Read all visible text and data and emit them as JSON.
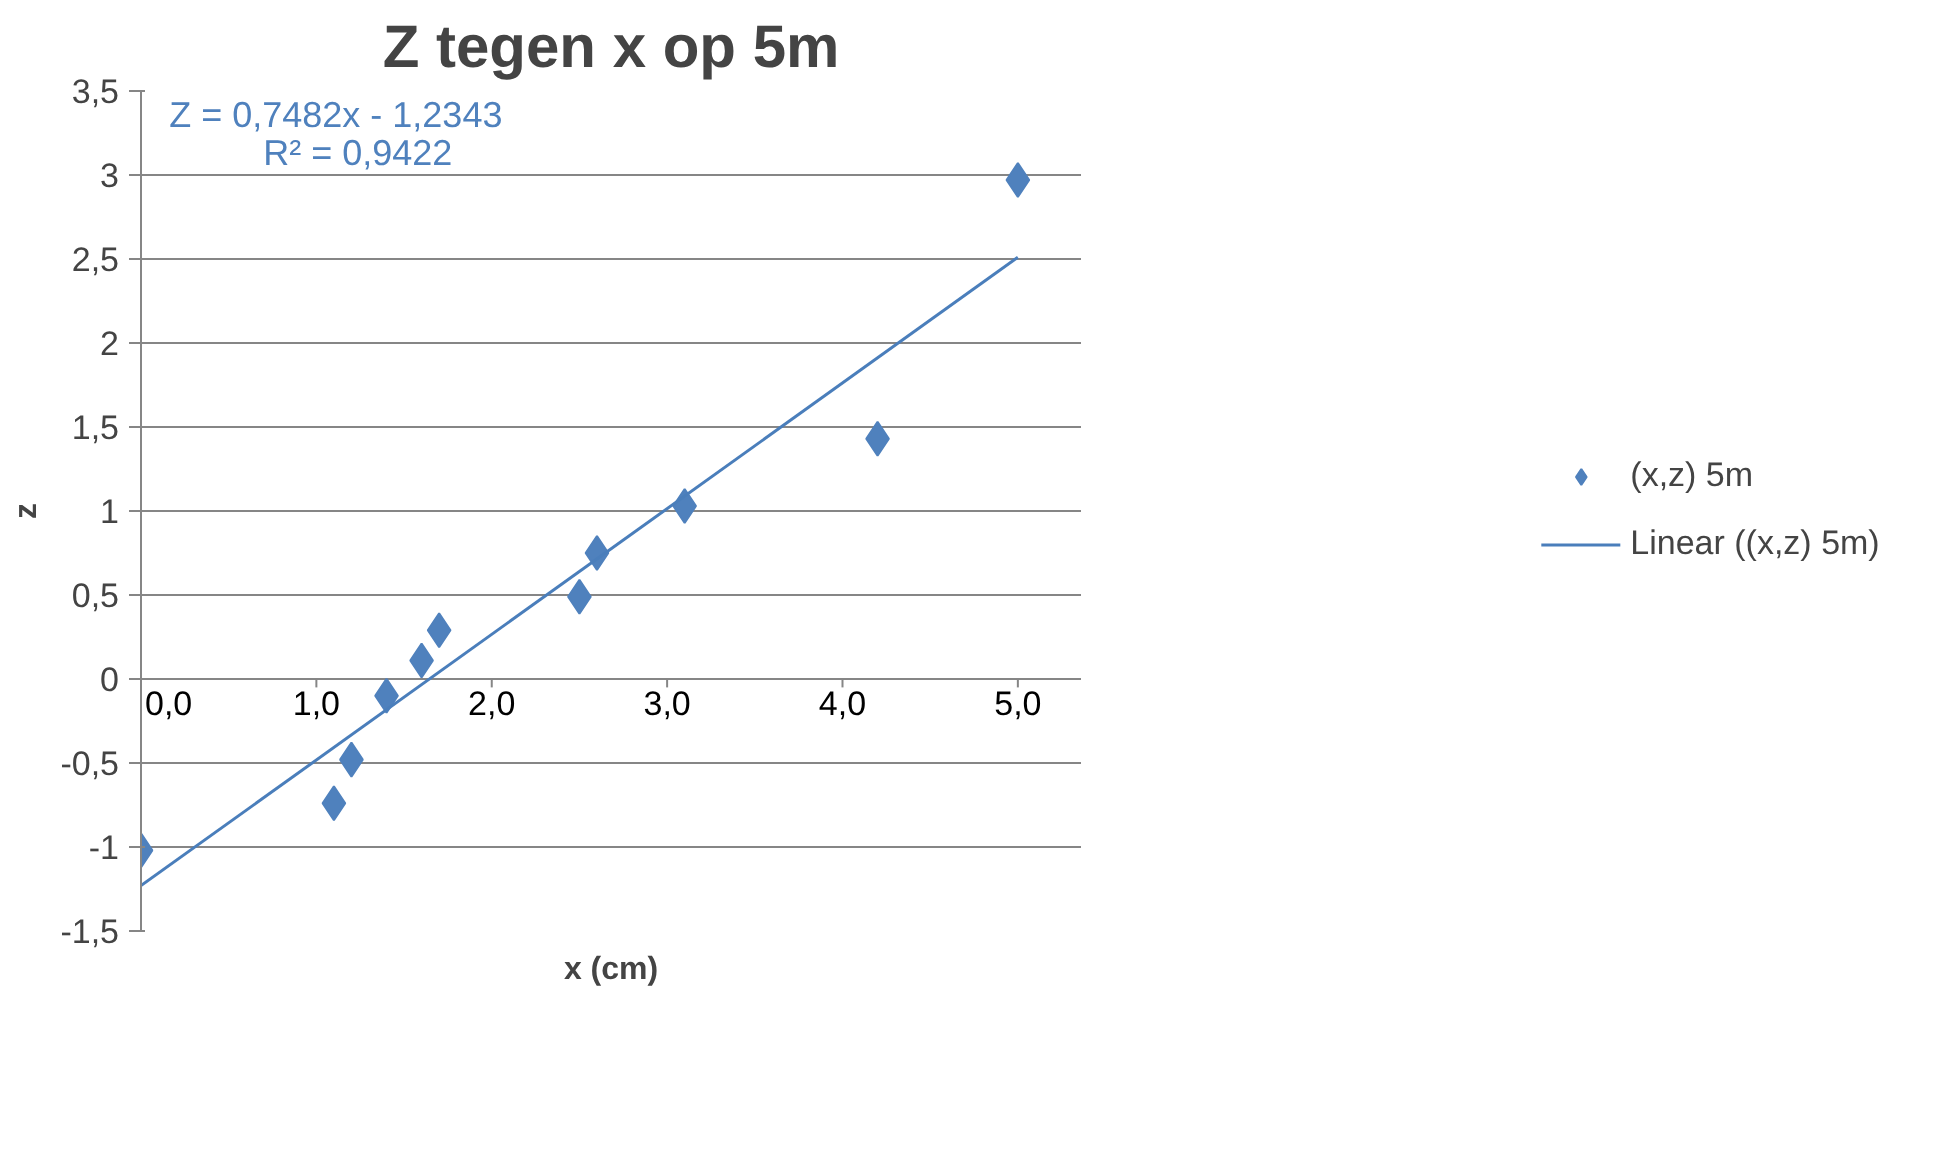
{
  "chart_data": {
    "type": "scatter",
    "title": "Z tegen x op 5m",
    "xlabel": "x (cm)",
    "ylabel": "z",
    "annotations": [
      "Z = 0,7482x - 1,2343",
      "R² = 0,9422"
    ],
    "series": [
      {
        "name": "(x,z) 5m",
        "color": "#4f81bd",
        "marker": "diamond",
        "x": [
          0.0,
          1.1,
          1.2,
          1.4,
          1.6,
          1.7,
          2.5,
          2.6,
          3.1,
          4.2,
          5.0
        ],
        "values": [
          -1.02,
          -0.74,
          -0.48,
          -0.1,
          0.11,
          0.29,
          0.49,
          0.75,
          1.03,
          1.43,
          2.97
        ]
      },
      {
        "name": "Linear ((x,z) 5m)",
        "type": "line",
        "color": "#4a7ebb",
        "line_style": "solid",
        "x": [
          0.0,
          5.0
        ],
        "values": [
          -1.23,
          2.51
        ]
      }
    ],
    "xlim": [
      0,
      5.36
    ],
    "ylim": [
      -1.5,
      3.5
    ],
    "xticks": [
      {
        "value": 0,
        "label": "0,0"
      },
      {
        "value": 1,
        "label": "1,0"
      },
      {
        "value": 2,
        "label": "2,0"
      },
      {
        "value": 3,
        "label": "3,0"
      },
      {
        "value": 4,
        "label": "4,0"
      },
      {
        "value": 5,
        "label": "5,0"
      }
    ],
    "yticks": [
      {
        "value": -1.5,
        "label": "-1,5"
      },
      -1,
      {
        "value": -0.5,
        "label": "-0,5"
      },
      0,
      {
        "value": 0.5,
        "label": "0,5"
      },
      1,
      {
        "value": 1.5,
        "label": "1,5"
      },
      2,
      {
        "value": 2.5,
        "label": "2,5"
      },
      3,
      {
        "value": 3.5,
        "label": "3,5"
      }
    ],
    "grid": "y",
    "legend": "right"
  }
}
